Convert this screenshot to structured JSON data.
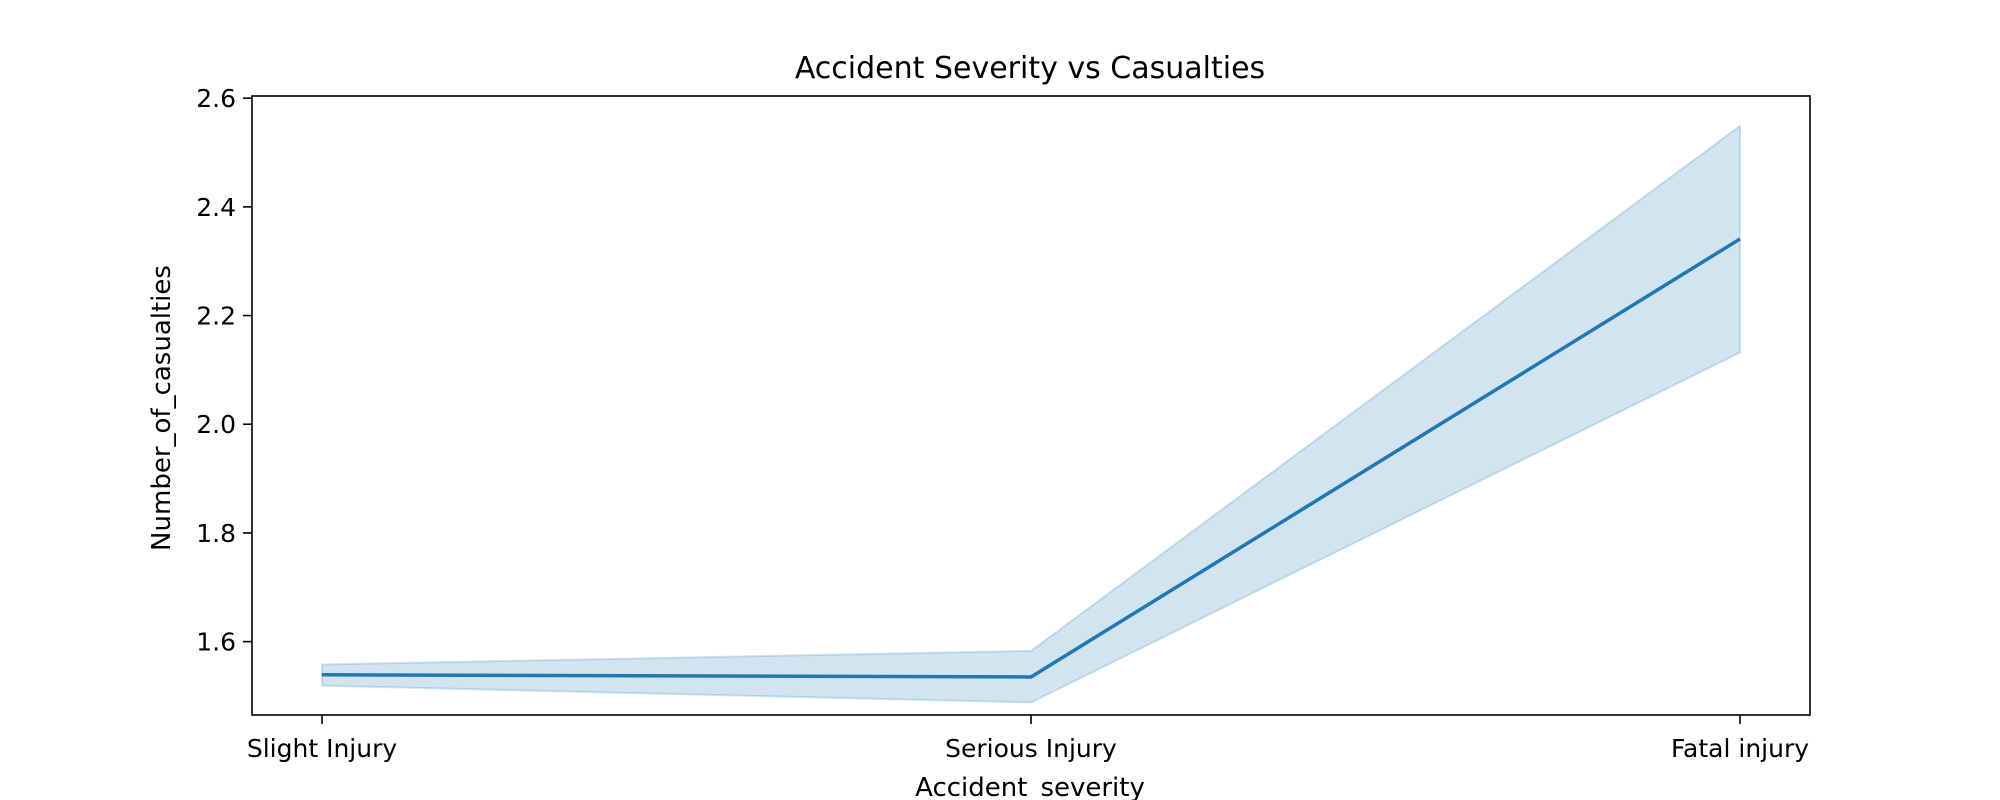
{
  "chart_data": {
    "type": "line",
    "title": "Accident Severity vs Casualties",
    "xlabel": "Accident_severity",
    "ylabel": "Number_of_casualties",
    "categories": [
      "Slight Injury",
      "Serious Injury",
      "Fatal injury"
    ],
    "series": [
      {
        "values": [
          1.539,
          1.535,
          2.341
        ],
        "ci_lower": [
          1.519,
          1.488,
          2.132
        ],
        "ci_upper": [
          1.558,
          1.583,
          2.549
        ]
      }
    ],
    "yticks": [
      1.6,
      1.8,
      2.0,
      2.2,
      2.4,
      2.6
    ],
    "ylim": [
      1.465,
      2.604
    ],
    "grid": false,
    "line_color": "#1f77b4",
    "band_color": "#1f77b4"
  }
}
